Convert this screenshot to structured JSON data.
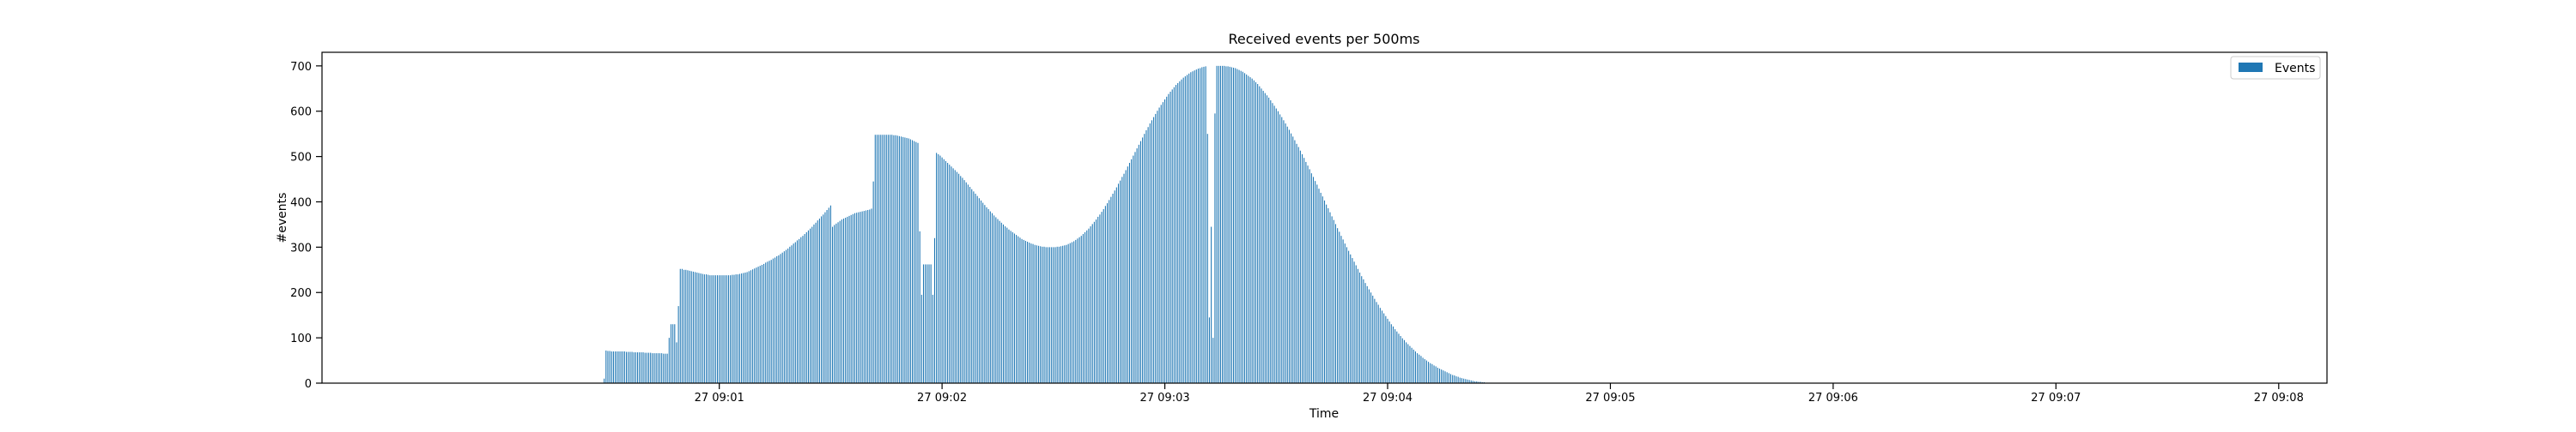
{
  "chart_data": {
    "type": "bar",
    "title": "Received events per 500ms",
    "xlabel": "Time",
    "ylabel": "#events",
    "ylim": [
      0,
      730
    ],
    "xlim": [
      "27 08:59:13",
      "27 09:08:13"
    ],
    "x_ticks": [
      {
        "label": "27 09:01",
        "time": "27 09:01:00"
      },
      {
        "label": "27 09:02",
        "time": "27 09:02:00"
      },
      {
        "label": "27 09:03",
        "time": "27 09:03:00"
      },
      {
        "label": "27 09:04",
        "time": "27 09:04:00"
      },
      {
        "label": "27 09:05",
        "time": "27 09:05:00"
      },
      {
        "label": "27 09:06",
        "time": "27 09:06:00"
      },
      {
        "label": "27 09:07",
        "time": "27 09:07:00"
      },
      {
        "label": "27 09:08",
        "time": "27 09:08:00"
      }
    ],
    "y_ticks": [
      0,
      100,
      200,
      300,
      400,
      500,
      600,
      700
    ],
    "grid": false,
    "legend_position": "upper-right",
    "bar_color": "#1f77b4",
    "bar_interval_ms": 500,
    "series": [
      {
        "name": "Events",
        "start_time": "27 09:00:29",
        "values": [
          10,
          72,
          71,
          71,
          70,
          70,
          70,
          70,
          70,
          70,
          70,
          70,
          69,
          69,
          69,
          69,
          68,
          68,
          68,
          68,
          68,
          68,
          67,
          67,
          67,
          67,
          66,
          66,
          66,
          66,
          66,
          66,
          65,
          65,
          65,
          100,
          130,
          130,
          130,
          90,
          170,
          252,
          252,
          250,
          250,
          249,
          248,
          247,
          246,
          245,
          244,
          243,
          242,
          241,
          240,
          240,
          239,
          238,
          238,
          238,
          238,
          238,
          238,
          238,
          238,
          238,
          238,
          238,
          238,
          239,
          239,
          240,
          240,
          241,
          242,
          243,
          244,
          245,
          247,
          249,
          251,
          253,
          255,
          257,
          259,
          261,
          263,
          266,
          268,
          270,
          272,
          275,
          277,
          280,
          282,
          285,
          288,
          291,
          294,
          297,
          301,
          304,
          308,
          311,
          315,
          318,
          322,
          325,
          329,
          333,
          337,
          341,
          345,
          350,
          354,
          359,
          363,
          368,
          372,
          377,
          382,
          387,
          392,
          345,
          349,
          352,
          355,
          358,
          361,
          363,
          365,
          367,
          369,
          371,
          373,
          375,
          376,
          377,
          378,
          379,
          380,
          381,
          382,
          383,
          385,
          445,
          548,
          548,
          548,
          548,
          548,
          548,
          548,
          548,
          548,
          548,
          547,
          547,
          546,
          545,
          544,
          543,
          542,
          541,
          540,
          538,
          536,
          534,
          532,
          530,
          335,
          195,
          262,
          262,
          262,
          262,
          262,
          195,
          320,
          508,
          505,
          502,
          498,
          494,
          490,
          486,
          482,
          478,
          474,
          470,
          466,
          462,
          457,
          453,
          448,
          443,
          438,
          433,
          428,
          423,
          418,
          413,
          408,
          403,
          398,
          393,
          388,
          384,
          379,
          375,
          370,
          366,
          362,
          358,
          354,
          350,
          346,
          343,
          339,
          336,
          333,
          330,
          327,
          324,
          321,
          318,
          316,
          314,
          312,
          310,
          308,
          307,
          305,
          304,
          303,
          302,
          301,
          301,
          300,
          300,
          300,
          300,
          300,
          300,
          301,
          301,
          302,
          303,
          304,
          305,
          307,
          309,
          311,
          313,
          316,
          319,
          322,
          325,
          329,
          333,
          337,
          341,
          346,
          351,
          356,
          361,
          367,
          372,
          378,
          384,
          391,
          397,
          404,
          411,
          418,
          425,
          432,
          440,
          447,
          455,
          462,
          470,
          478,
          486,
          494,
          502,
          510,
          518,
          526,
          534,
          542,
          550,
          558,
          565,
          573,
          580,
          587,
          594,
          601,
          608,
          614,
          620,
          626,
          632,
          638,
          643,
          648,
          653,
          658,
          662,
          666,
          670,
          674,
          677,
          680,
          683,
          686,
          688,
          690,
          692,
          694,
          695,
          697,
          698,
          699,
          550,
          145,
          345,
          100,
          595,
          700,
          700,
          700,
          700,
          700,
          699,
          699,
          698,
          697,
          696,
          695,
          693,
          691,
          689,
          687,
          684,
          681,
          678,
          675,
          672,
          668,
          664,
          660,
          655,
          650,
          645,
          640,
          635,
          630,
          624,
          618,
          612,
          606,
          600,
          593,
          587,
          580,
          573,
          566,
          559,
          551,
          544,
          536,
          528,
          521,
          513,
          505,
          497,
          488,
          480,
          472,
          463,
          455,
          446,
          438,
          429,
          420,
          412,
          403,
          394,
          386,
          377,
          368,
          360,
          351,
          342,
          334,
          325,
          317,
          308,
          300,
          292,
          284,
          276,
          268,
          260,
          252,
          244,
          236,
          229,
          221,
          214,
          207,
          200,
          193,
          186,
          179,
          173,
          166,
          160,
          154,
          148,
          142,
          136,
          130,
          125,
          119,
          114,
          109,
          104,
          99,
          95,
          90,
          86,
          82,
          78,
          74,
          70,
          66,
          63,
          60,
          56,
          53,
          50,
          47,
          44,
          42,
          39,
          37,
          34,
          32,
          30,
          28,
          26,
          24,
          22,
          20,
          18,
          17,
          15,
          14,
          12,
          11,
          10,
          9,
          8,
          7,
          6,
          5,
          4,
          4,
          3,
          3,
          2,
          2,
          1,
          1,
          1,
          1,
          0
        ]
      }
    ]
  }
}
